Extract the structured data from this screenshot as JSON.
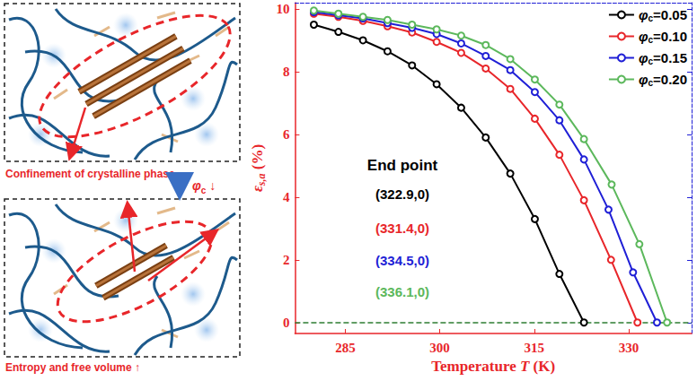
{
  "diagram": {
    "top_label": "Confinement of crystalline phase",
    "arrow_label": [
      "φ",
      "c",
      " ↓"
    ],
    "caption": "Entropy and free volume ↑"
  },
  "chart_data": {
    "type": "line",
    "xlabel": [
      "Temperature ",
      "T",
      " (K)"
    ],
    "ylabel": [
      "ε",
      "s,a",
      " (%)"
    ],
    "xlim": [
      277,
      340
    ],
    "xticks": [
      285,
      300,
      315,
      330
    ],
    "ylim": [
      -0.35,
      10.2
    ],
    "yticks": [
      0,
      2,
      4,
      6,
      8,
      10
    ],
    "grid": false,
    "legend": "upper right",
    "marker": "circle",
    "series": [
      {
        "name": "φc=0.05",
        "color": "#000000",
        "x": [
          280,
          283.9,
          287.8,
          291.7,
          295.6,
          299.5,
          303.4,
          307.3,
          311.2,
          315.1,
          319.0,
          322.9
        ],
        "values": [
          9.5,
          9.27,
          9.0,
          8.65,
          8.2,
          7.6,
          6.85,
          5.9,
          4.75,
          3.3,
          1.55,
          0
        ]
      },
      {
        "name": "φc=0.10",
        "color": "#e8262a",
        "x": [
          280,
          283.9,
          287.8,
          291.7,
          295.6,
          299.5,
          303.4,
          307.3,
          311.2,
          315.1,
          319.0,
          322.9,
          327.2,
          331.4
        ],
        "values": [
          9.85,
          9.75,
          9.62,
          9.45,
          9.25,
          8.95,
          8.6,
          8.1,
          7.45,
          6.5,
          5.35,
          3.9,
          2.0,
          0
        ]
      },
      {
        "name": "φc=0.15",
        "color": "#1f1fd6",
        "x": [
          280,
          283.9,
          287.8,
          291.7,
          295.6,
          299.5,
          303.4,
          307.3,
          311.2,
          315.1,
          319.0,
          322.9,
          326.8,
          330.7,
          334.5
        ],
        "values": [
          9.9,
          9.8,
          9.7,
          9.55,
          9.4,
          9.2,
          8.9,
          8.5,
          8.05,
          7.35,
          6.45,
          5.2,
          3.6,
          1.6,
          0
        ]
      },
      {
        "name": "φc=0.20",
        "color": "#5cb85c",
        "x": [
          280,
          283.9,
          287.8,
          291.7,
          295.6,
          299.5,
          303.4,
          307.3,
          311.2,
          315.1,
          319.0,
          322.9,
          327.3,
          331.7,
          336.1
        ],
        "values": [
          9.95,
          9.85,
          9.75,
          9.65,
          9.5,
          9.35,
          9.15,
          8.85,
          8.4,
          7.75,
          6.95,
          5.85,
          4.4,
          2.5,
          0
        ]
      }
    ],
    "annotations": [
      {
        "text": "End point",
        "color": "#000000"
      },
      {
        "text": "(322.9,0)",
        "color": "#000000"
      },
      {
        "text": "(331.4,0)",
        "color": "#e8262a"
      },
      {
        "text": "(334.5,0)",
        "color": "#1f1fd6"
      },
      {
        "text": "(336.1,0)",
        "color": "#5cb85c"
      }
    ],
    "reference_lines": [
      {
        "y": 0,
        "color": "#2e7d32",
        "line_style": "dashed"
      }
    ]
  }
}
